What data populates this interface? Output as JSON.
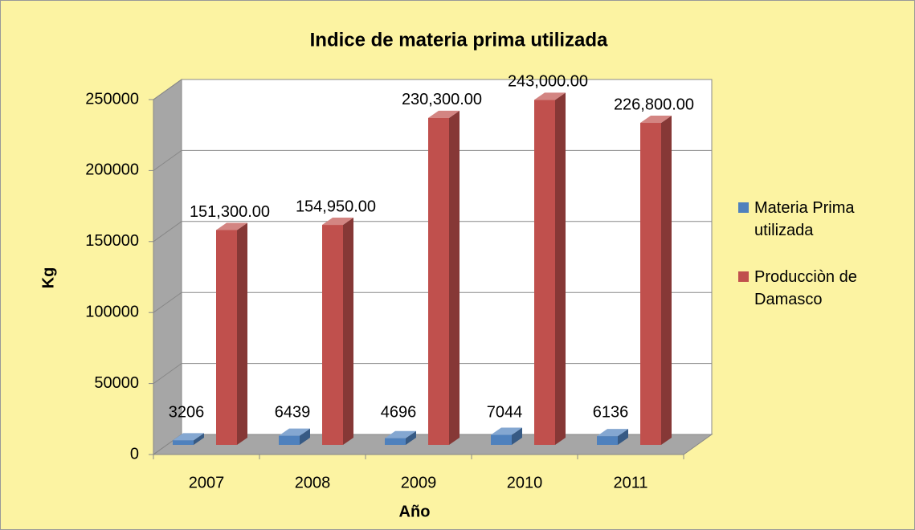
{
  "chart_data": {
    "type": "bar3d",
    "title": "Indice de materia prima utilizada",
    "x_label": "Año",
    "y_label": "Kg",
    "categories": [
      "2007",
      "2008",
      "2009",
      "2010",
      "2011"
    ],
    "series": [
      {
        "name": "Materia Prima utilizada",
        "color": "#4f81bd",
        "values": [
          3206,
          6439,
          4696,
          7044,
          6136
        ]
      },
      {
        "name": "Producciòn de Damasco",
        "color": "#c0504d",
        "values": [
          151300,
          154950,
          230300,
          243000,
          226800
        ],
        "value_labels": [
          "151,300.00",
          "154,950.00",
          "230,300.00",
          "243,000.00",
          "226,800.00"
        ]
      }
    ],
    "ylim": [
      0,
      250000
    ],
    "yticks": [
      0,
      50000,
      100000,
      150000,
      200000,
      250000
    ],
    "grid": true,
    "legend": "right"
  }
}
